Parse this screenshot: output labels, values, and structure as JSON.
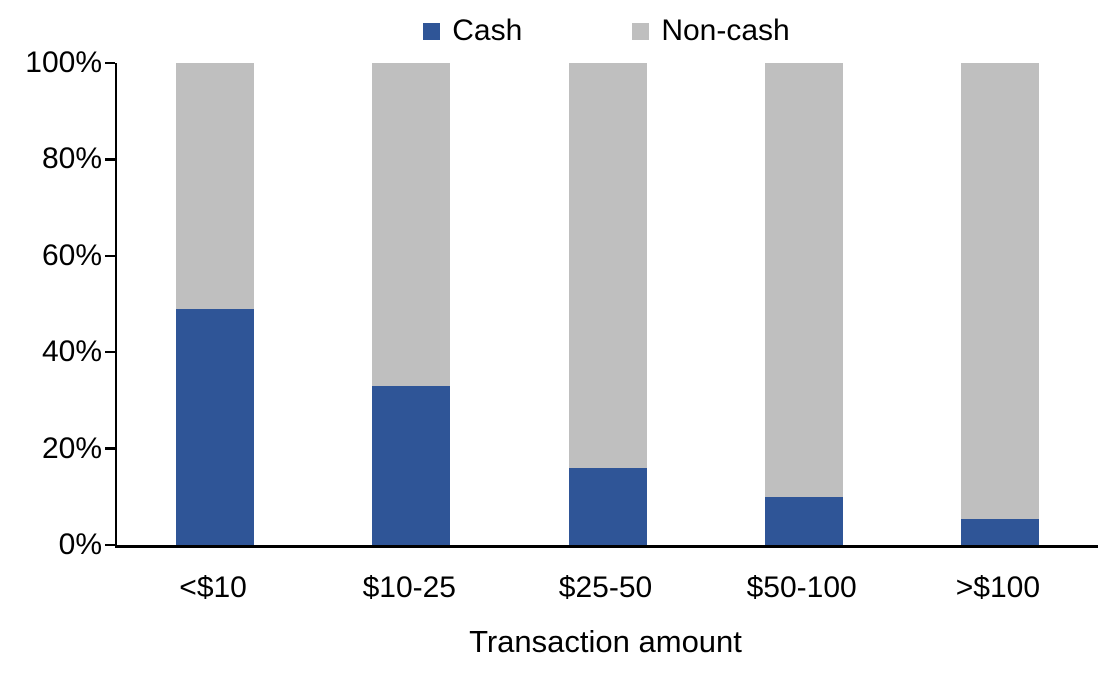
{
  "chart_data": {
    "type": "bar",
    "variant": "stacked-100",
    "title": "",
    "xlabel": "Transaction amount",
    "ylabel": "",
    "categories": [
      "<$10",
      "$10-25",
      "$25-50",
      "$50-100",
      ">$100"
    ],
    "series": [
      {
        "name": "Cash",
        "color": "#2F5597",
        "values": [
          49,
          33,
          16,
          10,
          5.5
        ]
      },
      {
        "name": "Non-cash",
        "color": "#BFBFBF",
        "values": [
          51,
          67,
          84,
          90,
          94.5
        ]
      }
    ],
    "ylim": [
      0,
      100
    ],
    "yticks": [
      {
        "value": 0,
        "label": "0%"
      },
      {
        "value": 20,
        "label": "20%"
      },
      {
        "value": 40,
        "label": "40%"
      },
      {
        "value": 60,
        "label": "60%"
      },
      {
        "value": 80,
        "label": "80%"
      },
      {
        "value": 100,
        "label": "100%"
      }
    ],
    "legend_position": "top",
    "grid": false,
    "axis_color": "#000000",
    "background_color": "#FFFFFF"
  }
}
